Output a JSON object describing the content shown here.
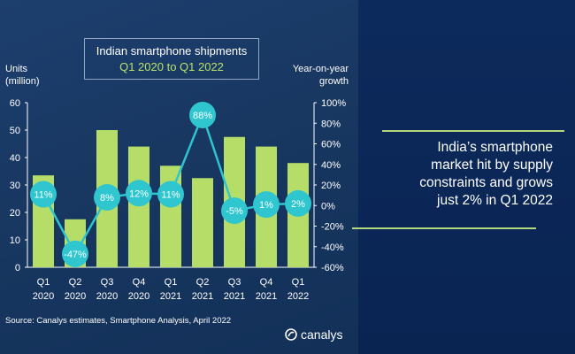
{
  "chart_data": {
    "type": "bar",
    "title": "Indian smartphone shipments",
    "subtitle": "Q1 2020 to Q1 2022",
    "ylabel_left": [
      "Units",
      "(million)"
    ],
    "ylabel_right": [
      "Year-on-year",
      "growth"
    ],
    "categories": [
      [
        "Q1",
        "2020"
      ],
      [
        "Q2",
        "2020"
      ],
      [
        "Q3",
        "2020"
      ],
      [
        "Q4",
        "2020"
      ],
      [
        "Q1",
        "2021"
      ],
      [
        "Q2",
        "2021"
      ],
      [
        "Q3",
        "2021"
      ],
      [
        "Q4",
        "2021"
      ],
      [
        "Q1",
        "2022"
      ]
    ],
    "left_ticks": [
      "0",
      "10",
      "20",
      "30",
      "40",
      "50",
      "60"
    ],
    "right_ticks": [
      "-60%",
      "-40%",
      "-20%",
      "0%",
      "20%",
      "40%",
      "60%",
      "80%",
      "100%"
    ],
    "ylim": [
      0,
      60
    ],
    "y2lim": [
      -60,
      100
    ],
    "series": [
      {
        "name": "Shipments (million units)",
        "type": "bar",
        "axis": "left",
        "values": [
          33.5,
          17.5,
          50,
          44,
          37,
          32.5,
          47.5,
          44,
          38
        ]
      },
      {
        "name": "Year-on-year growth (%)",
        "type": "line",
        "axis": "right",
        "values": [
          11,
          -47,
          8,
          12,
          11,
          88,
          -5,
          1,
          2
        ],
        "labels": [
          "11%",
          "-47%",
          "8%",
          "12%",
          "11%",
          "88%",
          "-5%",
          "1%",
          "2%"
        ]
      }
    ],
    "colors": {
      "bar": "#b5dd68",
      "line": "#2ec4d0",
      "marker": "#2fc6cf",
      "label": "#ffffff",
      "axis": "#ffffff"
    }
  },
  "source_text": "Source: Canalys estimates, Smartphone Analysis, April 2022",
  "logo_text": "canalys",
  "headline_lines": [
    "India’s smartphone",
    "market hit by supply",
    "constraints and grows",
    "just 2% in Q1 2022"
  ]
}
